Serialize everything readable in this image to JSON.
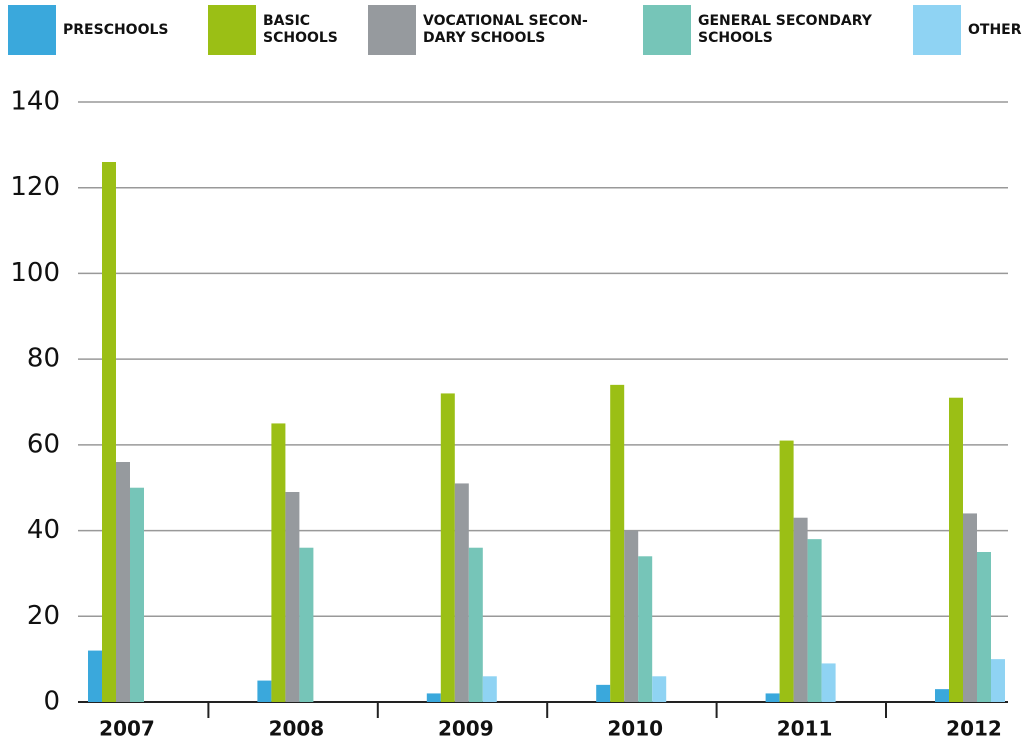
{
  "chart_data": {
    "type": "bar",
    "categories": [
      "2007",
      "2008",
      "2009",
      "2010",
      "2011",
      "2012"
    ],
    "series": [
      {
        "name": "PRESCHOOLS",
        "color": "#3aa8dc",
        "values": [
          12,
          5,
          2,
          4,
          2,
          3
        ]
      },
      {
        "name": "BASIC\nSCHOOLS",
        "color": "#9bbf15",
        "values": [
          126,
          65,
          72,
          74,
          61,
          71
        ]
      },
      {
        "name": "VOCATIONAL SECON-\nDARY SCHOOLS",
        "color": "#969a9e",
        "values": [
          56,
          49,
          51,
          40,
          43,
          44
        ]
      },
      {
        "name": "GENERAL SECONDARY\nSCHOOLS",
        "color": "#76c5b8",
        "values": [
          50,
          36,
          36,
          34,
          38,
          35
        ]
      },
      {
        "name": "OTHER",
        "color": "#8fd3f3",
        "values": [
          0,
          0,
          6,
          6,
          9,
          10
        ]
      }
    ],
    "ylim": [
      0,
      140
    ],
    "yticks": [
      0,
      20,
      40,
      60,
      80,
      100,
      120,
      140
    ],
    "grid": true,
    "legend": "top"
  }
}
